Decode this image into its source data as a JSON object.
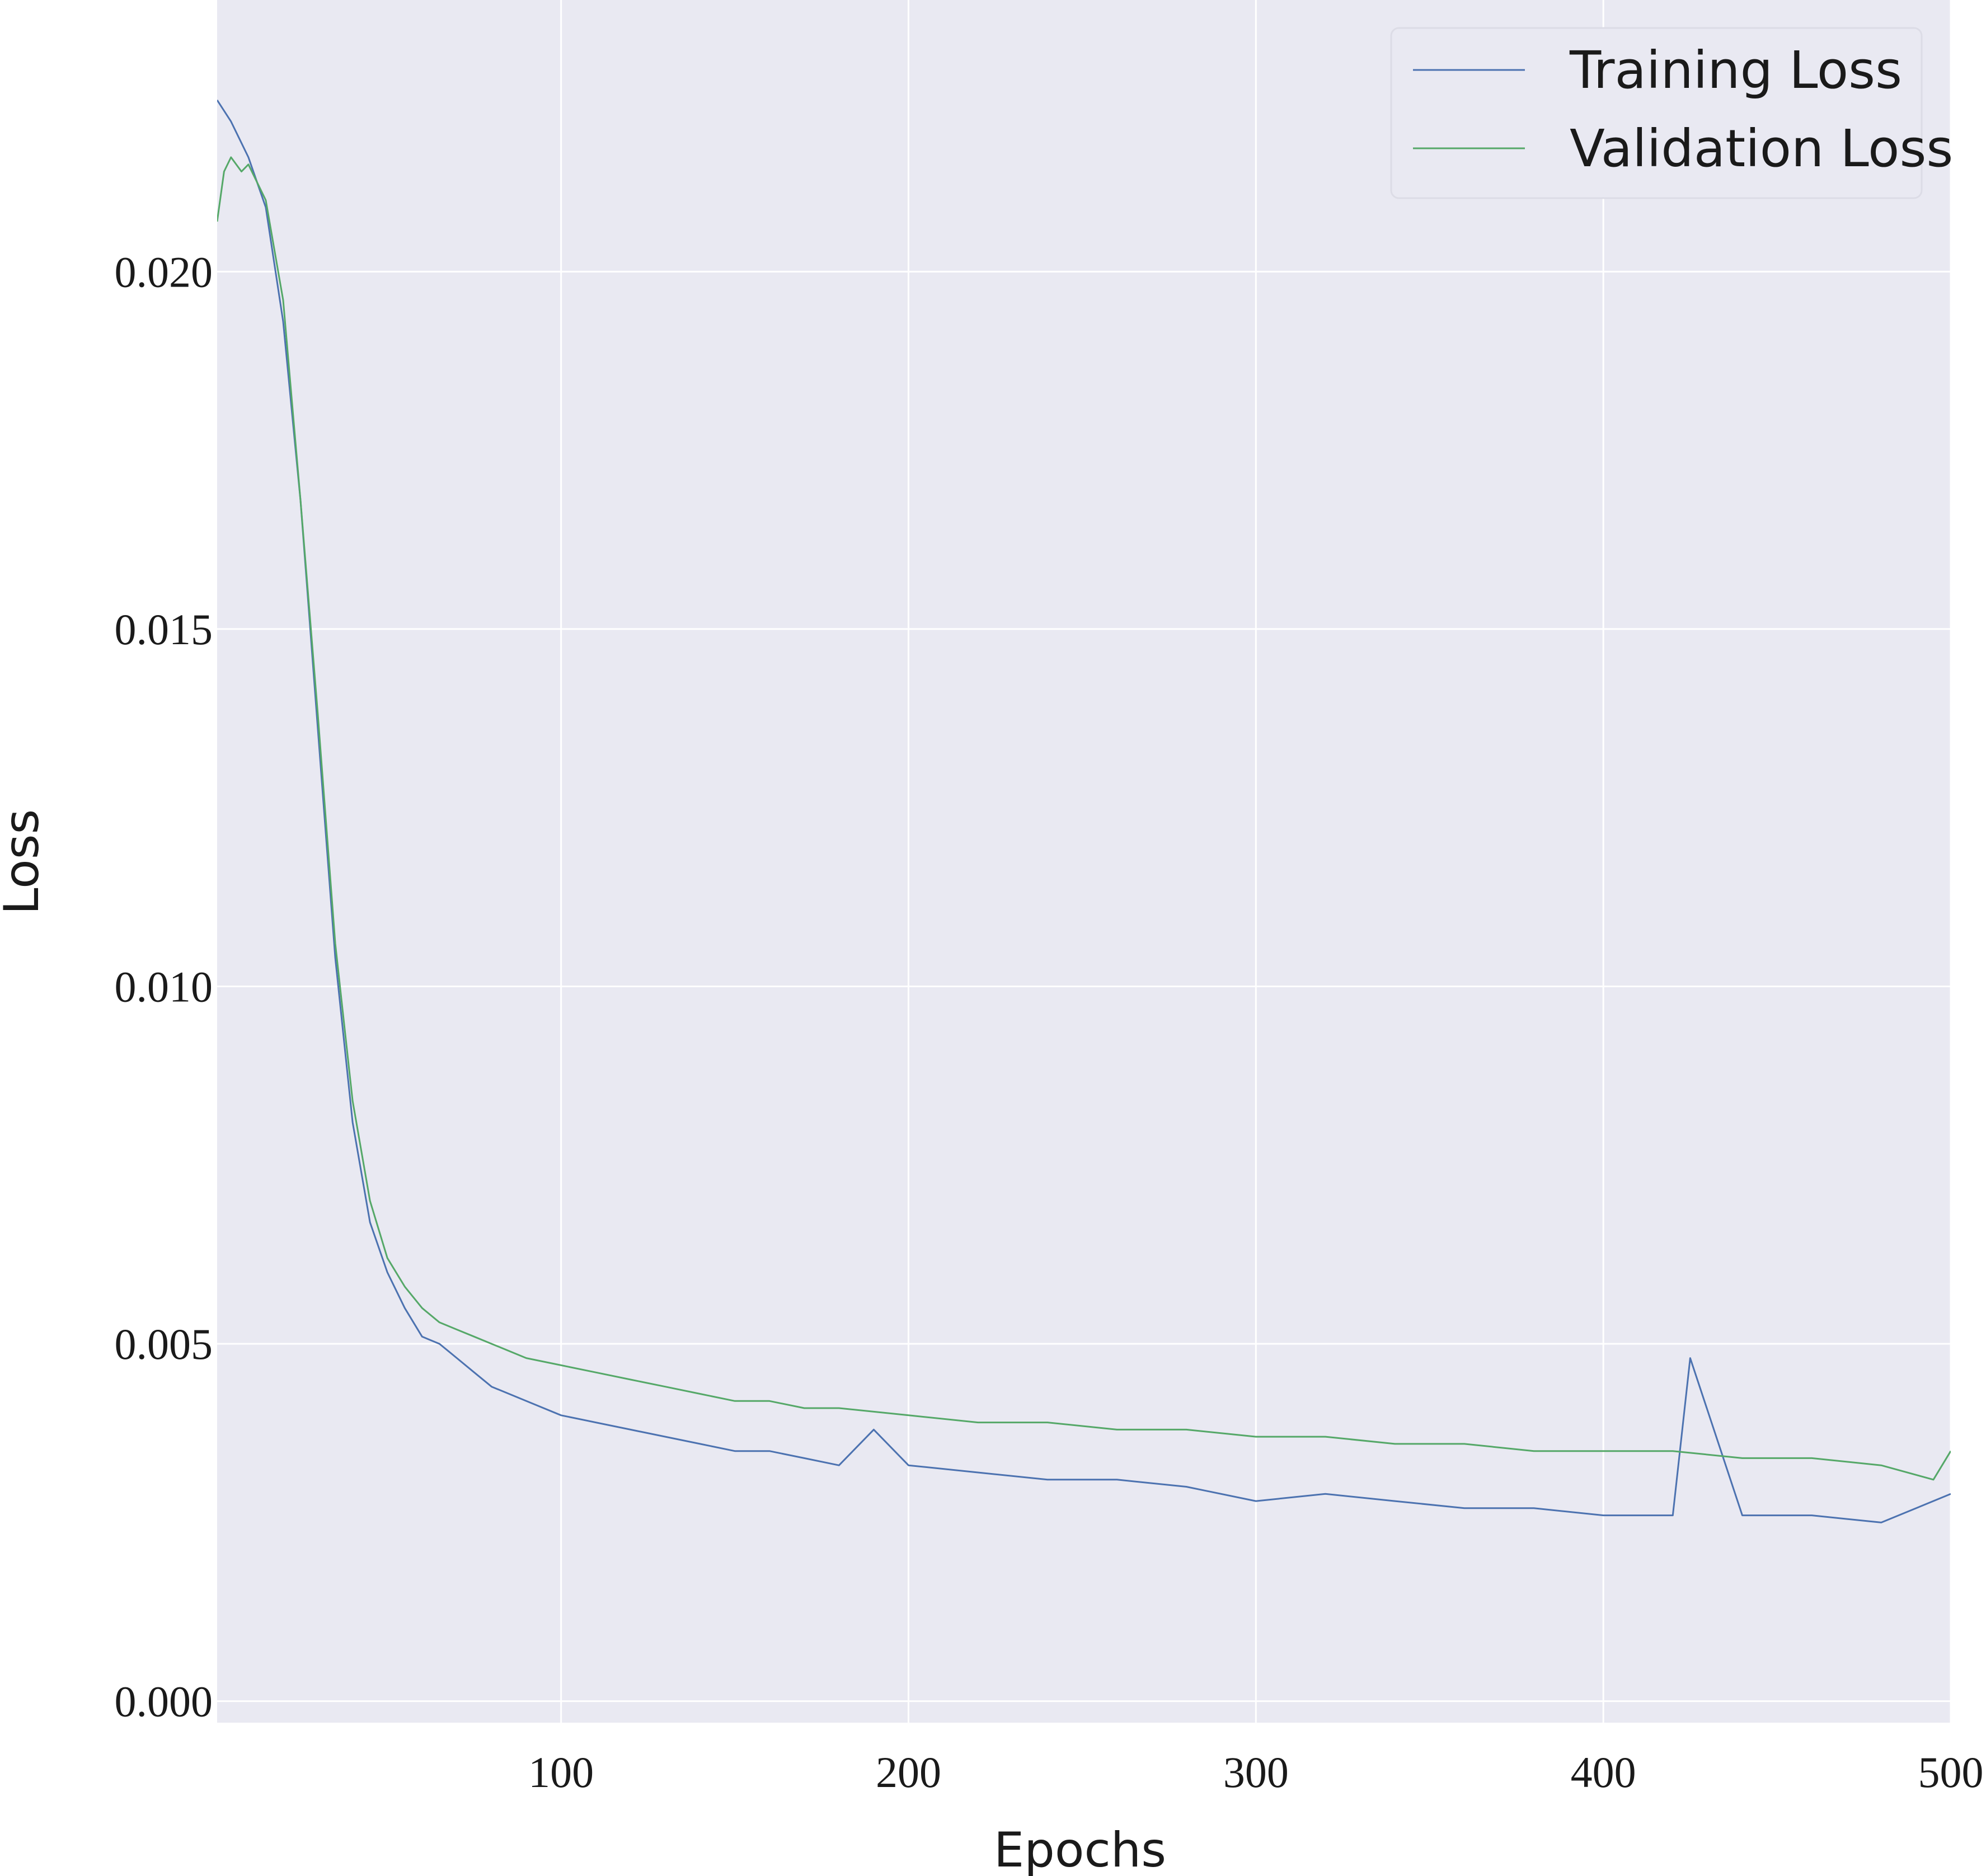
{
  "chart_data": {
    "type": "line",
    "title": "",
    "xlabel": "Epochs",
    "ylabel": "Loss",
    "xlim": [
      1,
      500
    ],
    "ylim": [
      -0.0003,
      0.0238
    ],
    "grid": true,
    "legend_position": "top-right",
    "x_ticks": [
      100,
      200,
      300,
      400,
      500
    ],
    "x_tick_labels": [
      "100",
      "200",
      "300",
      "400",
      "500"
    ],
    "y_ticks": [
      0.0,
      0.005,
      0.01,
      0.015,
      0.02
    ],
    "y_tick_labels": [
      "0.000",
      "0.005",
      "0.010",
      "0.015",
      "0.020"
    ],
    "colors": {
      "background": "#e9e9f2",
      "grid": "#ffffff",
      "training": "#4c72b0",
      "validation": "#55a868"
    },
    "series": [
      {
        "name": "Training Loss",
        "color": "#4c72b0",
        "x": [
          1,
          5,
          10,
          15,
          20,
          25,
          30,
          35,
          40,
          45,
          50,
          55,
          60,
          65,
          70,
          75,
          80,
          90,
          100,
          110,
          120,
          130,
          140,
          150,
          160,
          170,
          180,
          190,
          200,
          220,
          240,
          260,
          280,
          300,
          320,
          340,
          360,
          380,
          400,
          420,
          425,
          440,
          460,
          480,
          500
        ],
        "values": [
          0.0224,
          0.0221,
          0.0216,
          0.0209,
          0.0193,
          0.0168,
          0.0136,
          0.0104,
          0.0081,
          0.0067,
          0.006,
          0.0055,
          0.0051,
          0.005,
          0.0048,
          0.0046,
          0.0044,
          0.0042,
          0.004,
          0.0039,
          0.0038,
          0.0037,
          0.0036,
          0.0035,
          0.0035,
          0.0034,
          0.0033,
          0.0038,
          0.0033,
          0.0032,
          0.0031,
          0.0031,
          0.003,
          0.0028,
          0.0029,
          0.0028,
          0.0027,
          0.0027,
          0.0026,
          0.0026,
          0.0048,
          0.0026,
          0.0026,
          0.0025,
          0.0029
        ]
      },
      {
        "name": "Validation Loss",
        "color": "#55a868",
        "x": [
          1,
          3,
          5,
          8,
          10,
          15,
          20,
          25,
          30,
          35,
          40,
          45,
          50,
          55,
          60,
          65,
          70,
          75,
          80,
          90,
          100,
          110,
          120,
          130,
          140,
          150,
          160,
          170,
          180,
          200,
          220,
          240,
          260,
          280,
          300,
          320,
          340,
          360,
          380,
          400,
          420,
          440,
          460,
          480,
          495,
          500
        ],
        "values": [
          0.0207,
          0.0214,
          0.0216,
          0.0214,
          0.0215,
          0.021,
          0.0196,
          0.0168,
          0.0138,
          0.0106,
          0.0084,
          0.007,
          0.0062,
          0.0058,
          0.0055,
          0.0053,
          0.0052,
          0.0051,
          0.005,
          0.0048,
          0.0047,
          0.0046,
          0.0045,
          0.0044,
          0.0043,
          0.0042,
          0.0042,
          0.0041,
          0.0041,
          0.004,
          0.0039,
          0.0039,
          0.0038,
          0.0038,
          0.0037,
          0.0037,
          0.0036,
          0.0036,
          0.0035,
          0.0035,
          0.0035,
          0.0034,
          0.0034,
          0.0033,
          0.0031,
          0.0035
        ]
      }
    ]
  }
}
